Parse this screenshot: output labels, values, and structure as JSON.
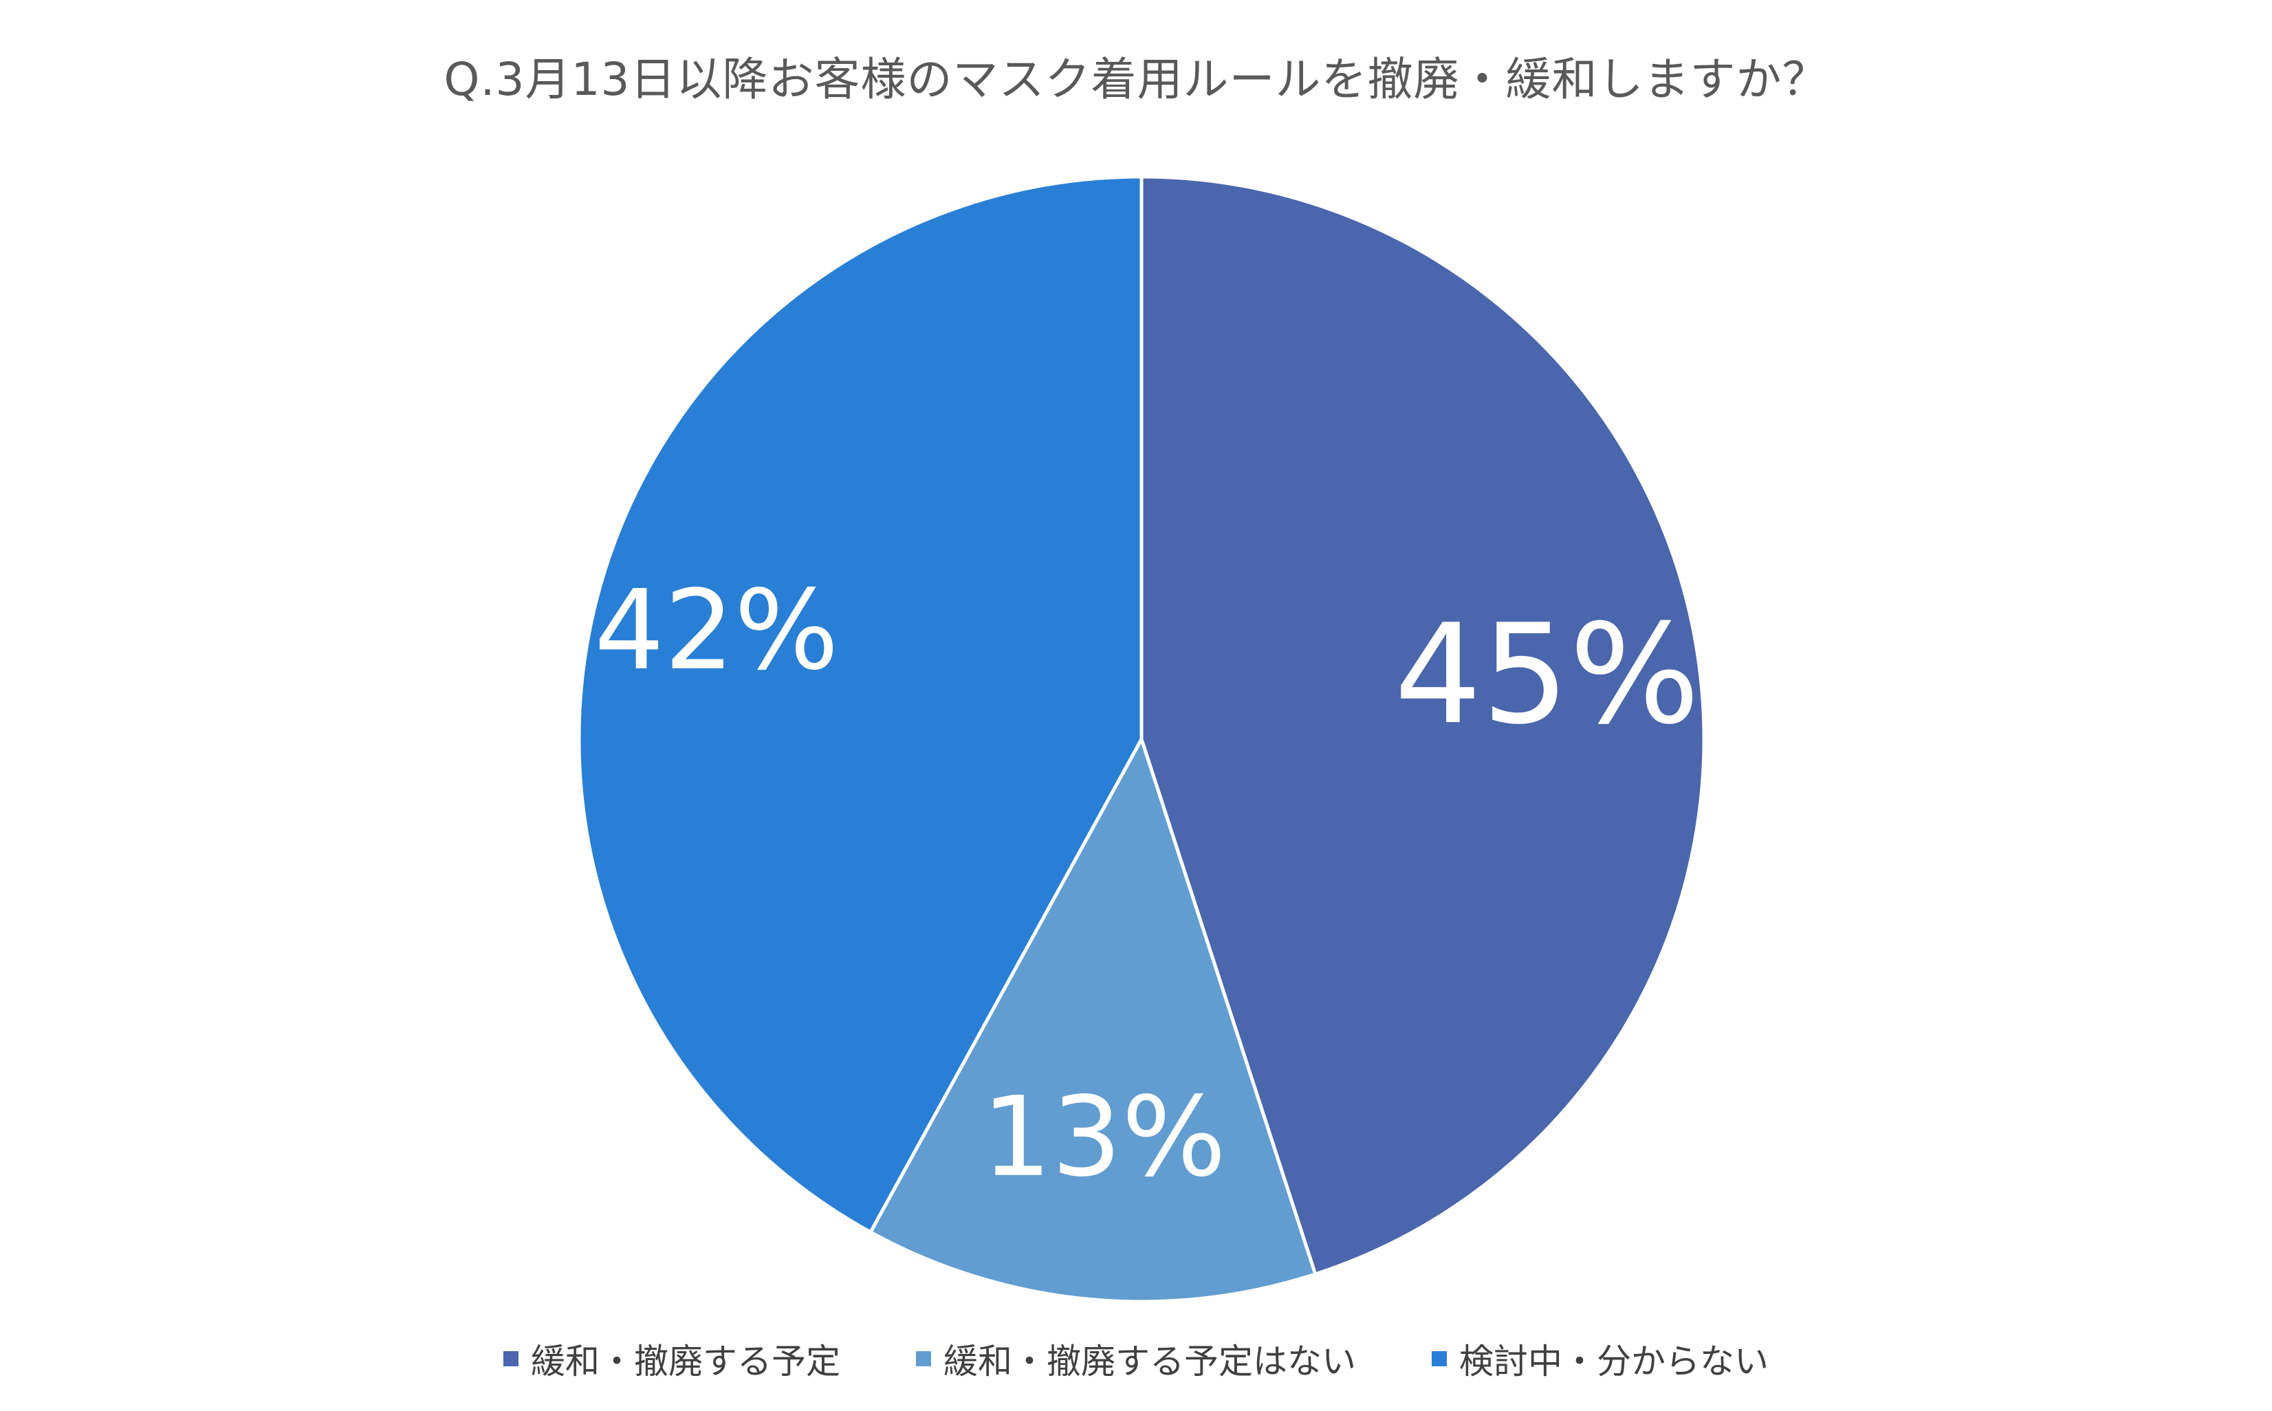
{
  "chart_data": {
    "type": "pie",
    "title": "Q.3月13日以降お客様のマスク着用ルールを撤廃・緩和しますか？",
    "slices": [
      {
        "label": "緩和・撤廃する予定",
        "value": 45,
        "display": "45%",
        "color": "#4A66AC"
      },
      {
        "label": "緩和・撤廃する予定はない",
        "value": 13,
        "display": "13%",
        "color": "#629DD1"
      },
      {
        "label": "検討中・分からない",
        "value": 42,
        "display": "42%",
        "color": "#297FD5"
      }
    ],
    "start_angle": "12 o'clock",
    "direction": "clockwise",
    "legend_position": "bottom"
  }
}
